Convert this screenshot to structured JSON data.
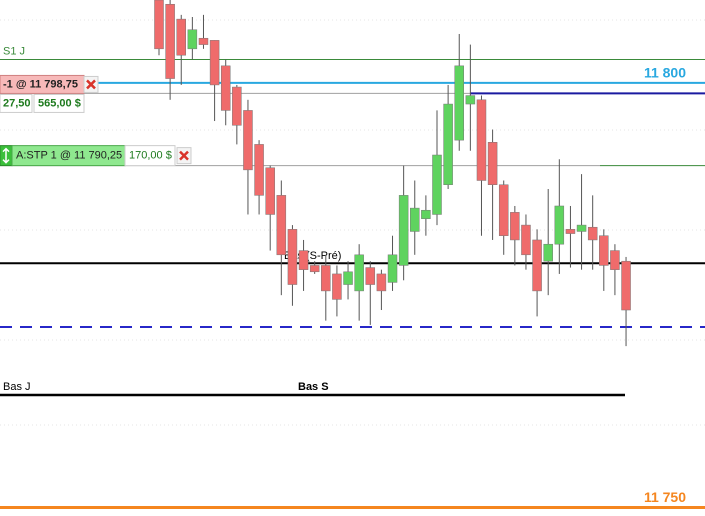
{
  "chart_data": {
    "type": "candlestick",
    "ylim": [
      11749,
      11809.75
    ],
    "yticks": [
      {
        "value": 11800,
        "label": "11 800"
      },
      {
        "value": 11750,
        "label": "11 750"
      }
    ],
    "ytick_colors": [
      "#29a8e0",
      "#f5861f"
    ],
    "up_color": "#5fd35f",
    "down_color": "#ef6b6b",
    "open": [
      11809.75,
      11809.25,
      11807.5,
      11804,
      11805.25,
      11805,
      11802,
      11799.5,
      11796.75,
      11792.75,
      11790,
      11786.75,
      11782.75,
      11780.25,
      11778.5,
      11778.5,
      11777.5,
      11776.25,
      11775.5,
      11778.25,
      11777.5,
      11776.5,
      11778.5,
      11782.5,
      11784,
      11784.5,
      11788,
      11793.25,
      11797.5,
      11798,
      11793,
      11788,
      11784.75,
      11783.25,
      11781.5,
      11779,
      11781,
      11782.75,
      11782.5,
      11783,
      11782,
      11780.25,
      11779
    ],
    "high": [
      11809.75,
      11809.75,
      11808,
      11807.75,
      11808,
      11805,
      11802.75,
      11799.75,
      11798,
      11793.25,
      11790.25,
      11788.5,
      11783.25,
      11781.5,
      11779,
      11779.75,
      11778.5,
      11779,
      11781,
      11779,
      11778,
      11782,
      11790.25,
      11788.5,
      11786.75,
      11796.75,
      11799.75,
      11805.75,
      11804.5,
      11798.5,
      11794.5,
      11788.5,
      11785.5,
      11784.5,
      11782.75,
      11787.5,
      11791,
      11785.5,
      11789.25,
      11786.75,
      11782.75,
      11781,
      11779.5
    ],
    "low": [
      11803.25,
      11798,
      11799.75,
      11802.75,
      11804,
      11795.5,
      11795,
      11792.75,
      11784.5,
      11784.5,
      11780.25,
      11775,
      11773.75,
      11775.5,
      11777.5,
      11772,
      11772.5,
      11774.5,
      11772,
      11771.5,
      11773.25,
      11775.5,
      11776.75,
      11779.75,
      11782,
      11783.25,
      11787.5,
      11792,
      11792,
      11782,
      11781.5,
      11779.75,
      11778.5,
      11778,
      11772.5,
      11775,
      11777.5,
      11778.25,
      11778,
      11778,
      11775.5,
      11775,
      11769
    ],
    "close": [
      11804,
      11800.5,
      11803.25,
      11806.25,
      11804.5,
      11799.75,
      11796.75,
      11795,
      11789.75,
      11786.75,
      11784.5,
      11779.75,
      11776.25,
      11778,
      11777.75,
      11775.5,
      11774.5,
      11777.75,
      11779.75,
      11776.25,
      11775.5,
      11779.75,
      11786.75,
      11785.25,
      11785,
      11791.5,
      11797.5,
      11802,
      11798.5,
      11788.5,
      11788,
      11782,
      11781.5,
      11779.75,
      11775.5,
      11781,
      11785.5,
      11782.25,
      11783.25,
      11781.5,
      11778.5,
      11778,
      11773.25
    ],
    "levels": [
      {
        "name": "S1 J",
        "value": 11802.75,
        "color": "#3a8a3a"
      },
      {
        "value": 11798.75,
        "color": "#1a1aa0"
      },
      {
        "value": 11790.25,
        "color": "#3a8a3a"
      },
      {
        "name": "Bas (S-Pré)",
        "value": 11778.75,
        "color": "#000000"
      },
      {
        "value": 11771.25,
        "color": "#2727c8",
        "dashed": true
      },
      {
        "names": [
          "Bas J",
          "Bas S"
        ],
        "value": 11763.25,
        "color": "#000000"
      }
    ],
    "orders": [
      {
        "label": "-1 @ 11 798,75",
        "price": 11798.75,
        "stats": [
          "27,50",
          "565,00 $"
        ]
      },
      {
        "label": "A:STP 1 @ 11 790,25",
        "price": 11790.25,
        "stats": [
          "170,00 $"
        ]
      }
    ]
  }
}
